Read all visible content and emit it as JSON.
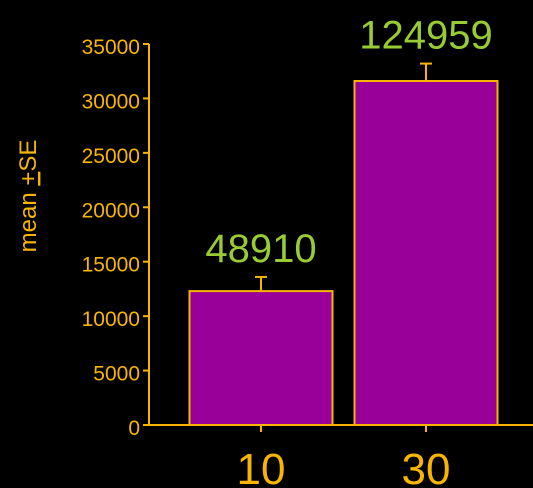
{
  "chart_data": {
    "type": "bar",
    "categories": [
      "10",
      "30"
    ],
    "values": [
      12300,
      31600
    ],
    "errors": [
      1300,
      1600
    ],
    "data_labels": [
      "48910",
      "124959"
    ],
    "title": "",
    "xlabel": "",
    "ylabel_prefix": "mean ",
    "ylabel_pm": "+",
    "ylabel_suffix": "SE",
    "ylim": [
      0,
      35000
    ],
    "yticks": [
      0,
      5000,
      10000,
      15000,
      20000,
      25000,
      30000,
      35000
    ],
    "yticklabels": [
      "0",
      "5000",
      "10000",
      "15000",
      "20000",
      "25000",
      "30000",
      "35000"
    ],
    "grid": false,
    "colors": {
      "background": "#000000",
      "axis": "#f7b500",
      "tick_text": "#f7b500",
      "category_text": "#f7b500",
      "bar_fill": "#990099",
      "bar_edge": "#f7b500",
      "data_label": "#99cc33"
    }
  }
}
